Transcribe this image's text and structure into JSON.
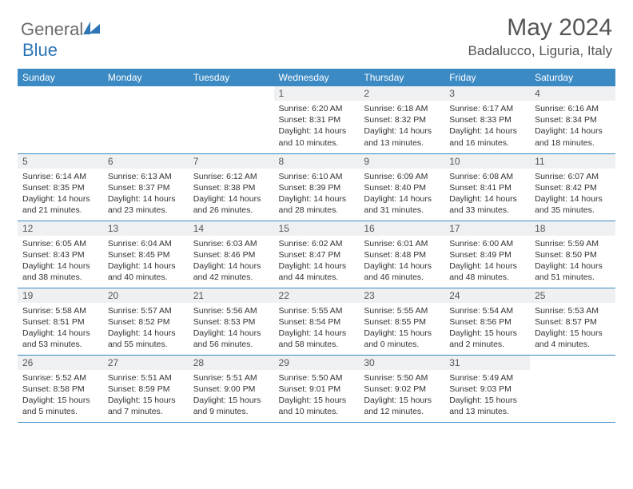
{
  "logo": {
    "part1": "General",
    "part2": "Blue"
  },
  "title": "May 2024",
  "location": "Badalucco, Liguria, Italy",
  "daysOfWeek": [
    "Sunday",
    "Monday",
    "Tuesday",
    "Wednesday",
    "Thursday",
    "Friday",
    "Saturday"
  ],
  "colors": {
    "headerBg": "#3b8ac4",
    "headerText": "#ffffff",
    "dayNumBg": "#eef0f2",
    "text": "#333333",
    "titleText": "#555555",
    "logoGray": "#6b6b6b",
    "logoBlue": "#2e75b6",
    "borderColor": "#3b8ac4"
  },
  "weeks": [
    [
      null,
      null,
      null,
      {
        "n": "1",
        "sr": "6:20 AM",
        "ss": "8:31 PM",
        "dl": "14 hours and 10 minutes."
      },
      {
        "n": "2",
        "sr": "6:18 AM",
        "ss": "8:32 PM",
        "dl": "14 hours and 13 minutes."
      },
      {
        "n": "3",
        "sr": "6:17 AM",
        "ss": "8:33 PM",
        "dl": "14 hours and 16 minutes."
      },
      {
        "n": "4",
        "sr": "6:16 AM",
        "ss": "8:34 PM",
        "dl": "14 hours and 18 minutes."
      }
    ],
    [
      {
        "n": "5",
        "sr": "6:14 AM",
        "ss": "8:35 PM",
        "dl": "14 hours and 21 minutes."
      },
      {
        "n": "6",
        "sr": "6:13 AM",
        "ss": "8:37 PM",
        "dl": "14 hours and 23 minutes."
      },
      {
        "n": "7",
        "sr": "6:12 AM",
        "ss": "8:38 PM",
        "dl": "14 hours and 26 minutes."
      },
      {
        "n": "8",
        "sr": "6:10 AM",
        "ss": "8:39 PM",
        "dl": "14 hours and 28 minutes."
      },
      {
        "n": "9",
        "sr": "6:09 AM",
        "ss": "8:40 PM",
        "dl": "14 hours and 31 minutes."
      },
      {
        "n": "10",
        "sr": "6:08 AM",
        "ss": "8:41 PM",
        "dl": "14 hours and 33 minutes."
      },
      {
        "n": "11",
        "sr": "6:07 AM",
        "ss": "8:42 PM",
        "dl": "14 hours and 35 minutes."
      }
    ],
    [
      {
        "n": "12",
        "sr": "6:05 AM",
        "ss": "8:43 PM",
        "dl": "14 hours and 38 minutes."
      },
      {
        "n": "13",
        "sr": "6:04 AM",
        "ss": "8:45 PM",
        "dl": "14 hours and 40 minutes."
      },
      {
        "n": "14",
        "sr": "6:03 AM",
        "ss": "8:46 PM",
        "dl": "14 hours and 42 minutes."
      },
      {
        "n": "15",
        "sr": "6:02 AM",
        "ss": "8:47 PM",
        "dl": "14 hours and 44 minutes."
      },
      {
        "n": "16",
        "sr": "6:01 AM",
        "ss": "8:48 PM",
        "dl": "14 hours and 46 minutes."
      },
      {
        "n": "17",
        "sr": "6:00 AM",
        "ss": "8:49 PM",
        "dl": "14 hours and 48 minutes."
      },
      {
        "n": "18",
        "sr": "5:59 AM",
        "ss": "8:50 PM",
        "dl": "14 hours and 51 minutes."
      }
    ],
    [
      {
        "n": "19",
        "sr": "5:58 AM",
        "ss": "8:51 PM",
        "dl": "14 hours and 53 minutes."
      },
      {
        "n": "20",
        "sr": "5:57 AM",
        "ss": "8:52 PM",
        "dl": "14 hours and 55 minutes."
      },
      {
        "n": "21",
        "sr": "5:56 AM",
        "ss": "8:53 PM",
        "dl": "14 hours and 56 minutes."
      },
      {
        "n": "22",
        "sr": "5:55 AM",
        "ss": "8:54 PM",
        "dl": "14 hours and 58 minutes."
      },
      {
        "n": "23",
        "sr": "5:55 AM",
        "ss": "8:55 PM",
        "dl": "15 hours and 0 minutes."
      },
      {
        "n": "24",
        "sr": "5:54 AM",
        "ss": "8:56 PM",
        "dl": "15 hours and 2 minutes."
      },
      {
        "n": "25",
        "sr": "5:53 AM",
        "ss": "8:57 PM",
        "dl": "15 hours and 4 minutes."
      }
    ],
    [
      {
        "n": "26",
        "sr": "5:52 AM",
        "ss": "8:58 PM",
        "dl": "15 hours and 5 minutes."
      },
      {
        "n": "27",
        "sr": "5:51 AM",
        "ss": "8:59 PM",
        "dl": "15 hours and 7 minutes."
      },
      {
        "n": "28",
        "sr": "5:51 AM",
        "ss": "9:00 PM",
        "dl": "15 hours and 9 minutes."
      },
      {
        "n": "29",
        "sr": "5:50 AM",
        "ss": "9:01 PM",
        "dl": "15 hours and 10 minutes."
      },
      {
        "n": "30",
        "sr": "5:50 AM",
        "ss": "9:02 PM",
        "dl": "15 hours and 12 minutes."
      },
      {
        "n": "31",
        "sr": "5:49 AM",
        "ss": "9:03 PM",
        "dl": "15 hours and 13 minutes."
      },
      null
    ]
  ],
  "labels": {
    "sunrise": "Sunrise:",
    "sunset": "Sunset:",
    "daylight": "Daylight:"
  }
}
